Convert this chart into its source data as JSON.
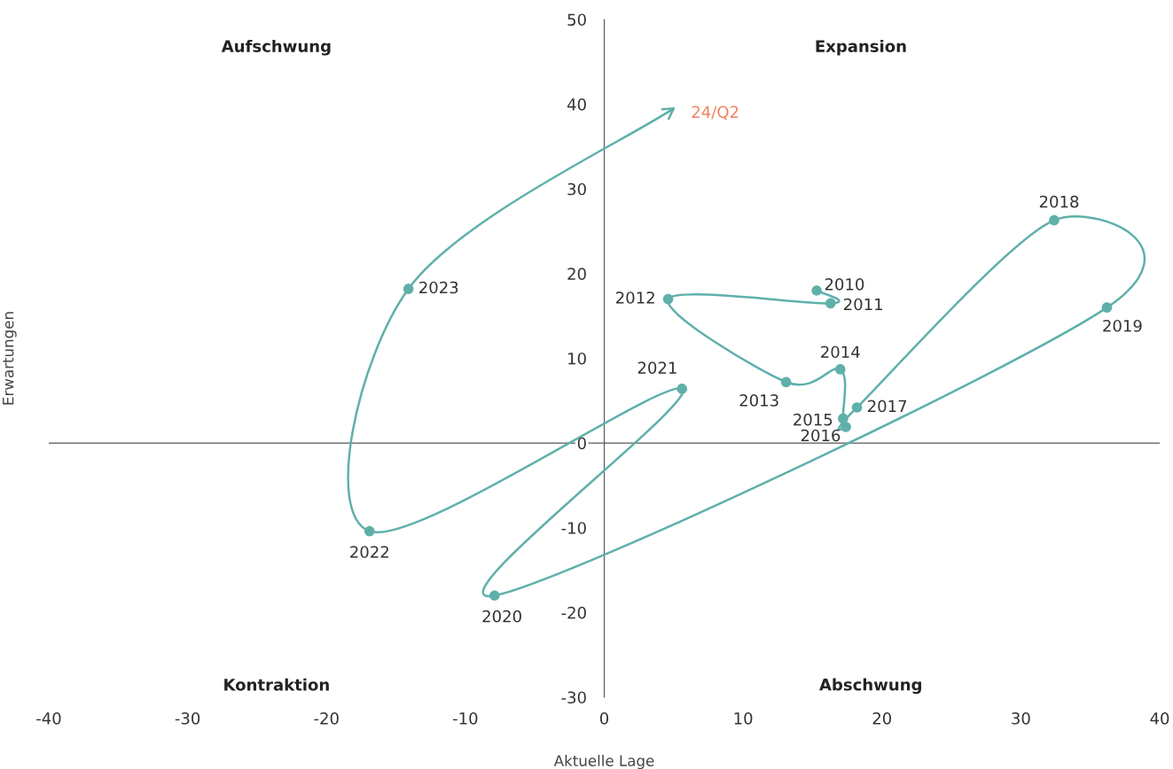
{
  "chart_data": {
    "type": "scatter",
    "xlabel": "Aktuelle Lage",
    "ylabel": "Erwartungen",
    "x": [
      15.3,
      16.3,
      4.6,
      13.1,
      17.0,
      17.2,
      17.4,
      18.2,
      32.4,
      36.2,
      -7.9,
      5.6,
      -16.9,
      -14.1
    ],
    "series": [
      {
        "color": "#5fb0aa",
        "values": [
          18.0,
          16.5,
          17.0,
          7.2,
          8.7,
          2.9,
          1.9,
          4.2,
          26.3,
          16.0,
          -18.0,
          6.4,
          -10.4,
          18.2
        ]
      },
      {
        "type": "line",
        "marker": "none",
        "color": "#5fb0aa",
        "x": [
          15.3,
          16.3
        ],
        "values": [
          18.0,
          16.5
        ]
      },
      {
        "type": "line",
        "marker": "none",
        "color": "#5fb0aa",
        "x": [
          16.3,
          4.6
        ],
        "values": [
          16.5,
          17.0
        ]
      },
      {
        "type": "line",
        "marker": "none",
        "color": "#5fb0aa",
        "x": [
          4.6,
          13.1
        ],
        "values": [
          17.0,
          7.2
        ]
      },
      {
        "type": "line",
        "marker": "none",
        "color": "#5fb0aa",
        "x": [
          13.1,
          17.0
        ],
        "values": [
          7.2,
          8.7
        ]
      },
      {
        "type": "line",
        "marker": "none",
        "color": "#5fb0aa",
        "x": [
          17.0,
          17.2,
          17.4,
          18.2
        ],
        "values": [
          8.7,
          2.9,
          1.9,
          4.2
        ]
      },
      {
        "type": "line",
        "marker": "none",
        "color": "#5fb0aa",
        "x": [
          18.2,
          32.4
        ],
        "values": [
          4.2,
          26.3
        ]
      },
      {
        "type": "line",
        "marker": "none",
        "color": "#5fb0aa",
        "x": [
          32.4,
          36.2
        ],
        "values": [
          26.3,
          16.0
        ]
      },
      {
        "type": "line",
        "marker": "none",
        "color": "#5fb0aa",
        "x": [
          36.2,
          -7.9
        ],
        "values": [
          16.0,
          -18.0
        ]
      },
      {
        "type": "line",
        "marker": "none",
        "color": "#5fb0aa",
        "x": [
          -7.9,
          5.6
        ],
        "values": [
          -18.0,
          6.4
        ]
      },
      {
        "type": "line",
        "marker": "none",
        "color": "#5fb0aa",
        "x": [
          5.6,
          -16.9
        ],
        "values": [
          6.4,
          -10.4
        ]
      },
      {
        "type": "line",
        "marker": "none",
        "color": "#5fb0aa",
        "x": [
          -16.9,
          -14.1
        ],
        "values": [
          -10.4,
          18.2
        ]
      },
      {
        "type": "line",
        "marker": "none",
        "color": "#5fb0aa",
        "x": [
          -14.1,
          5.0
        ],
        "values": [
          18.2,
          39.5
        ]
      }
    ],
    "marker": "circle",
    "line_style": "solid",
    "grid": false,
    "xlim": [
      -40,
      40
    ],
    "ylim": [
      -30,
      50
    ],
    "xticks": [
      -40,
      -30,
      -20,
      -10,
      0,
      10,
      20,
      30,
      40
    ],
    "yticks": [
      -30,
      -20,
      -10,
      0,
      10,
      20,
      30,
      40,
      50
    ],
    "ref_lines": [
      {
        "axis": "y",
        "value": 0,
        "color": "#555555"
      }
    ],
    "annotations": [
      {
        "text": "2010",
        "x": 15.3,
        "y": 18.0
      },
      {
        "text": "2011",
        "x": 16.3,
        "y": 16.5
      },
      {
        "text": "2012",
        "x": 4.6,
        "y": 17.0
      },
      {
        "text": "2013",
        "x": 13.1,
        "y": 7.2
      },
      {
        "text": "2014",
        "x": 17.0,
        "y": 8.7
      },
      {
        "text": "2015",
        "x": 17.2,
        "y": 2.9
      },
      {
        "text": "2016",
        "x": 17.4,
        "y": 1.9
      },
      {
        "text": "2017",
        "x": 18.2,
        "y": 4.2
      },
      {
        "text": "2018",
        "x": 32.4,
        "y": 26.3
      },
      {
        "text": "2019",
        "x": 36.2,
        "y": 16.0
      },
      {
        "text": "2020",
        "x": -7.9,
        "y": -18.0
      },
      {
        "text": "2021",
        "x": 5.6,
        "y": 6.4
      },
      {
        "text": "2022",
        "x": -16.9,
        "y": -10.4
      },
      {
        "text": "2023",
        "x": -14.1,
        "y": 18.2
      },
      {
        "text": "24/Q2",
        "x": 5.0,
        "y": 39.5
      },
      "Aufschwung",
      "Expansion",
      "Kontraktion",
      "Abschwung"
    ]
  }
}
